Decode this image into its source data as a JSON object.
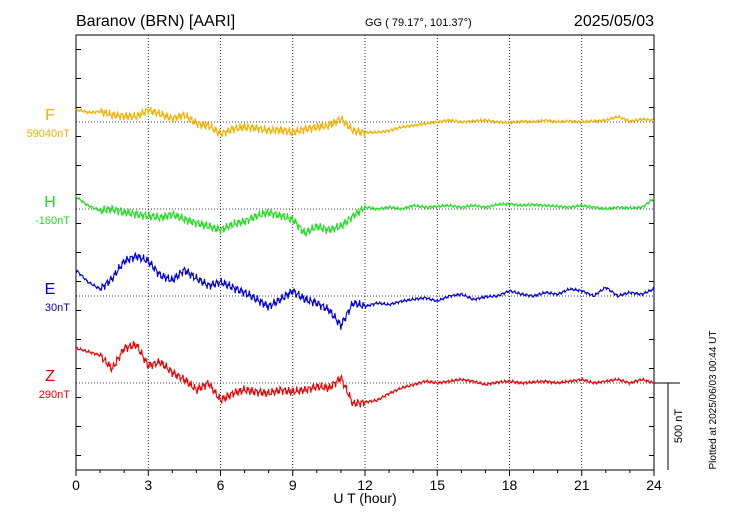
{
  "header": {
    "station": "Baranov (BRN)  [AARI]",
    "coords": "GG ( 79.17°, 101.37°)",
    "date": "2025/05/03"
  },
  "side_note": "Plotted at 2025/06/03 00:44 UT",
  "chart_data": {
    "type": "line",
    "title": "",
    "xlabel": "U T (hour)",
    "ylabel": "",
    "xlim": [
      0,
      24
    ],
    "x_ticks": [
      0,
      3,
      6,
      9,
      12,
      15,
      18,
      21,
      24
    ],
    "grid": true,
    "scale_bar": {
      "label": "500 nT",
      "value": 500
    },
    "series": [
      {
        "name": "F",
        "baseline": "59040nT",
        "color": "#f5b000",
        "x": [
          0,
          0.5,
          1,
          1.5,
          2,
          2.5,
          3,
          3.5,
          4,
          4.5,
          5,
          5.5,
          6,
          6.5,
          7,
          7.5,
          8,
          8.5,
          9,
          9.5,
          10,
          10.5,
          11,
          11.5,
          12,
          12.5,
          13,
          13.5,
          14,
          14.5,
          15,
          15.5,
          16,
          16.5,
          17,
          17.5,
          18,
          18.5,
          19,
          19.5,
          20,
          20.5,
          21,
          21.5,
          22,
          22.5,
          23,
          23.5,
          24
        ],
        "values": [
          70,
          55,
          60,
          40,
          35,
          30,
          70,
          45,
          20,
          40,
          -10,
          -20,
          -70,
          -40,
          -30,
          -35,
          -50,
          -45,
          -60,
          -40,
          -30,
          -20,
          20,
          -50,
          -60,
          -60,
          -50,
          -30,
          -20,
          -10,
          0,
          10,
          0,
          5,
          10,
          0,
          -5,
          5,
          0,
          10,
          0,
          5,
          0,
          5,
          10,
          30,
          5,
          15,
          10
        ]
      },
      {
        "name": "H",
        "baseline": "-160nT",
        "color": "#22dd22",
        "x": [
          0,
          0.5,
          1,
          1.5,
          2,
          2.5,
          3,
          3.5,
          4,
          4.5,
          5,
          5.5,
          6,
          6.5,
          7,
          7.5,
          8,
          8.5,
          9,
          9.5,
          10,
          10.5,
          11,
          11.5,
          12,
          12.5,
          13,
          13.5,
          14,
          14.5,
          15,
          15.5,
          16,
          16.5,
          17,
          17.5,
          18,
          18.5,
          19,
          19.5,
          20,
          20.5,
          21,
          21.5,
          22,
          22.5,
          23,
          23.5,
          24
        ],
        "values": [
          70,
          20,
          -10,
          0,
          -20,
          -30,
          -40,
          -50,
          -30,
          -60,
          -80,
          -100,
          -120,
          -90,
          -70,
          -40,
          -20,
          -40,
          -60,
          -140,
          -100,
          -120,
          -100,
          -40,
          10,
          0,
          10,
          0,
          20,
          10,
          15,
          20,
          10,
          20,
          10,
          25,
          30,
          20,
          25,
          20,
          15,
          10,
          20,
          10,
          0,
          10,
          5,
          10,
          60
        ]
      },
      {
        "name": "E",
        "baseline": "30nT",
        "color": "#0000dd",
        "x": [
          0,
          0.5,
          1,
          1.5,
          2,
          2.5,
          3,
          3.5,
          4,
          4.5,
          5,
          5.5,
          6,
          6.5,
          7,
          7.5,
          8,
          8.5,
          9,
          9.5,
          10,
          10.5,
          11,
          11.5,
          12,
          12.5,
          13,
          13.5,
          14,
          14.5,
          15,
          15.5,
          16,
          16.5,
          17,
          17.5,
          18,
          18.5,
          19,
          19.5,
          20,
          20.5,
          21,
          21.5,
          22,
          22.5,
          23,
          23.5,
          24
        ],
        "values": [
          150,
          80,
          40,
          100,
          200,
          230,
          200,
          120,
          90,
          150,
          100,
          60,
          80,
          50,
          20,
          -20,
          -60,
          -20,
          30,
          -20,
          -40,
          -80,
          -170,
          -40,
          -60,
          -40,
          -50,
          -30,
          -20,
          -10,
          -30,
          0,
          10,
          -20,
          -5,
          0,
          30,
          10,
          0,
          20,
          10,
          40,
          30,
          0,
          50,
          0,
          20,
          10,
          40
        ]
      },
      {
        "name": "Z",
        "baseline": "290nT",
        "color": "#ee0000",
        "x": [
          0,
          0.5,
          1,
          1.5,
          2,
          2.5,
          3,
          3.5,
          4,
          4.5,
          5,
          5.5,
          6,
          6.5,
          7,
          7.5,
          8,
          8.5,
          9,
          9.5,
          10,
          10.5,
          11,
          11.5,
          12,
          12.5,
          13,
          13.5,
          14,
          14.5,
          15,
          15.5,
          16,
          16.5,
          17,
          17.5,
          18,
          18.5,
          19,
          19.5,
          20,
          20.5,
          21,
          21.5,
          22,
          22.5,
          23,
          23.5,
          24
        ],
        "values": [
          200,
          180,
          160,
          80,
          200,
          220,
          100,
          120,
          60,
          20,
          -40,
          0,
          -100,
          -60,
          -40,
          -50,
          -60,
          -40,
          -50,
          -40,
          -20,
          -30,
          30,
          -120,
          -110,
          -100,
          -60,
          -30,
          -10,
          10,
          0,
          10,
          20,
          10,
          -10,
          5,
          10,
          0,
          5,
          10,
          0,
          10,
          20,
          0,
          10,
          20,
          0,
          20,
          0
        ]
      }
    ]
  }
}
